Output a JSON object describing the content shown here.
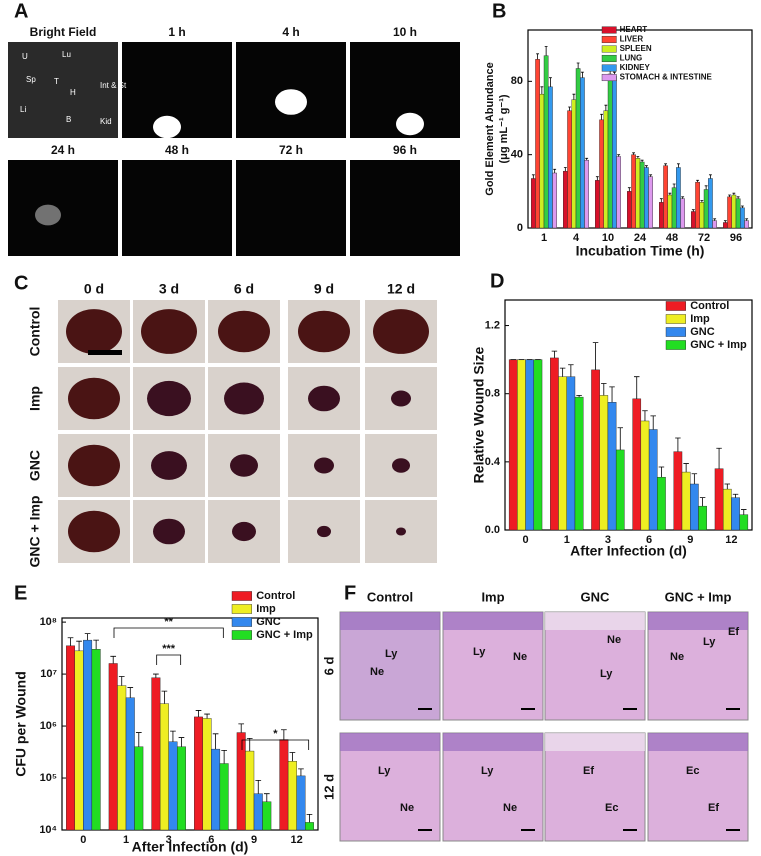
{
  "figure": {
    "panel_labels": [
      "A",
      "B",
      "C",
      "D",
      "E",
      "F"
    ],
    "panel_a": {
      "titles": [
        "Bright Field",
        "1 h",
        "4 h",
        "10 h",
        "24 h",
        "48 h",
        "72 h",
        "96 h"
      ],
      "organ_labels": [
        "U",
        "Lu",
        "Sp",
        "T",
        "H",
        "Int & St",
        "Li",
        "B",
        "Kid"
      ]
    },
    "panel_c": {
      "columns": [
        "0 d",
        "3 d",
        "6 d",
        "9 d",
        "12 d"
      ],
      "rows": [
        "Control",
        "Imp",
        "GNC",
        "GNC + Imp"
      ]
    },
    "panel_f": {
      "columns": [
        "Control",
        "Imp",
        "GNC",
        "GNC + Imp"
      ],
      "rows": [
        "6 d",
        "12 d"
      ],
      "cell_labels": [
        [
          [
            "Ly",
            "Ne"
          ],
          [
            "Ly",
            "Ne"
          ],
          [
            "Ne",
            "Ly"
          ],
          [
            "Ef",
            "Ly",
            "Ne"
          ]
        ],
        [
          [
            "Ly",
            "Ne"
          ],
          [
            "Ly",
            "Ne"
          ],
          [
            "Ef",
            "Ec"
          ],
          [
            "Ec",
            "Ef"
          ]
        ]
      ]
    }
  },
  "chart_data": [
    {
      "type": "bar",
      "ylabel": "Gold Element Abundance",
      "ylabel_unit": "(μg mL⁻¹ g⁻¹)",
      "xlabel": "Incubation Time (h)",
      "categories": [
        "1",
        "4",
        "10",
        "24",
        "48",
        "72",
        "96"
      ],
      "ylim": [
        0,
        108
      ],
      "yticks": [
        0,
        40,
        80
      ],
      "legend": "upper right",
      "series": [
        {
          "name": "HEART",
          "color": "#d8102a",
          "values": [
            27,
            31,
            26,
            20,
            14,
            9,
            3
          ],
          "errors": [
            2,
            2,
            2,
            2,
            2,
            1,
            1
          ]
        },
        {
          "name": "LIVER",
          "color": "#ff4433",
          "values": [
            92,
            64,
            59,
            40,
            34,
            25,
            17
          ],
          "errors": [
            3,
            2,
            3,
            1,
            1,
            1,
            1
          ]
        },
        {
          "name": "SPLEEN",
          "color": "#ccee22",
          "values": [
            73,
            70,
            64,
            38,
            18,
            14,
            18
          ],
          "errors": [
            4,
            3,
            3,
            1,
            1,
            1,
            1
          ]
        },
        {
          "name": "LUNG",
          "color": "#33cc44",
          "values": [
            94,
            87,
            84,
            36,
            22,
            21,
            16
          ],
          "errors": [
            5,
            3,
            2,
            1,
            2,
            2,
            1
          ]
        },
        {
          "name": "KIDNEY",
          "color": "#3399ee",
          "values": [
            77,
            82,
            83,
            33,
            33,
            27,
            11
          ],
          "errors": [
            5,
            3,
            2,
            1,
            2,
            2,
            1
          ]
        },
        {
          "name": "STOMACH & INTESTINE",
          "color": "#dd99ee",
          "values": [
            30,
            37,
            39,
            28,
            16,
            4,
            4
          ],
          "errors": [
            2,
            1,
            1,
            1,
            1,
            1,
            1
          ]
        }
      ]
    },
    {
      "type": "bar",
      "ylabel": "Relative Wound Size",
      "xlabel": "After Infection (d)",
      "categories": [
        "0",
        "1",
        "3",
        "6",
        "9",
        "12"
      ],
      "ylim": [
        0,
        1.35
      ],
      "yticks": [
        {
          "value": 0,
          "label": "0.0"
        },
        0.4,
        0.8,
        1.2
      ],
      "legend": "upper right",
      "series": [
        {
          "name": "Control",
          "color": "#ee1c24",
          "values": [
            1.0,
            1.01,
            0.94,
            0.77,
            0.46,
            0.36
          ],
          "errors": [
            0,
            0.04,
            0.16,
            0.13,
            0.08,
            0.12
          ]
        },
        {
          "name": "Imp",
          "color": "#eeee22",
          "values": [
            1.0,
            0.9,
            0.79,
            0.64,
            0.34,
            0.24
          ],
          "errors": [
            0,
            0.05,
            0.07,
            0.06,
            0.05,
            0.03
          ]
        },
        {
          "name": "GNC",
          "color": "#3388ee",
          "values": [
            1.0,
            0.9,
            0.75,
            0.59,
            0.27,
            0.19
          ],
          "errors": [
            0,
            0.07,
            0.09,
            0.08,
            0.06,
            0.02
          ]
        },
        {
          "name": "GNC + Imp",
          "color": "#22dd22",
          "values": [
            1.0,
            0.78,
            0.47,
            0.31,
            0.14,
            0.09
          ],
          "errors": [
            0,
            0.01,
            0.13,
            0.06,
            0.05,
            0.03
          ]
        }
      ]
    },
    {
      "type": "bar",
      "ylabel": "CFU per Wound",
      "xlabel": "After Infection (d)",
      "log_y": true,
      "categories": [
        "0",
        "1",
        "3",
        "6",
        "9",
        "12"
      ],
      "ylim": [
        10000,
        120000000
      ],
      "yticks": [
        {
          "value": 10000,
          "label": "10⁴"
        },
        {
          "value": 100000,
          "label": "10⁵"
        },
        {
          "value": 1000000,
          "label": "10⁶"
        },
        {
          "value": 10000000,
          "label": "10⁷"
        },
        {
          "value": 100000000,
          "label": "10⁸"
        }
      ],
      "legend": "upper right",
      "annotations": [
        "**",
        "***",
        "*"
      ],
      "series": [
        {
          "name": "Control",
          "color": "#ee1c24",
          "values": [
            35000000,
            16000000,
            8500000,
            1500000,
            750000,
            550000
          ],
          "errors": [
            15000000,
            6000000,
            1500000,
            500000,
            350000,
            300000
          ]
        },
        {
          "name": "Imp",
          "color": "#eeee22",
          "values": [
            28000000,
            6000000,
            2700000,
            1400000,
            330000,
            210000
          ],
          "errors": [
            15000000,
            3000000,
            2000000,
            300000,
            250000,
            100000
          ]
        },
        {
          "name": "GNC",
          "color": "#3388ee",
          "values": [
            45000000,
            3500000,
            500000,
            360000,
            50000,
            110000
          ],
          "errors": [
            15000000,
            2000000,
            300000,
            350000,
            40000,
            40000
          ]
        },
        {
          "name": "GNC + Imp",
          "color": "#22dd22",
          "values": [
            30000000,
            400000,
            400000,
            190000,
            35000,
            14000
          ],
          "errors": [
            15000000,
            350000,
            200000,
            150000,
            15000,
            6000
          ]
        }
      ]
    }
  ]
}
